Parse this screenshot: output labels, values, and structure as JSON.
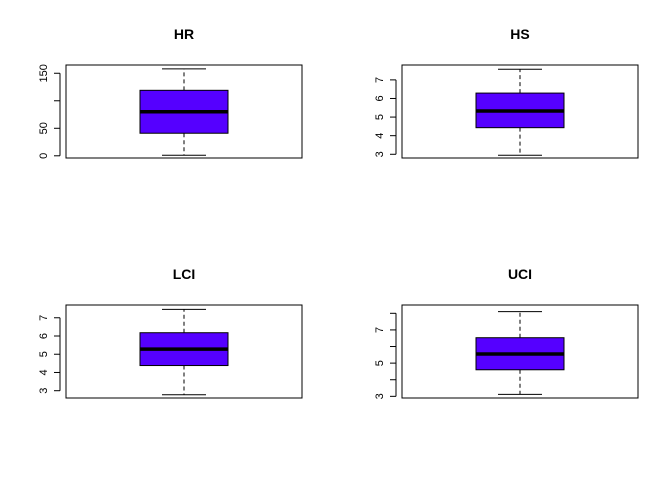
{
  "chart_data": [
    {
      "type": "box",
      "title": "HR",
      "ylim": [
        -4,
        165
      ],
      "ticks": [
        0,
        50,
        100,
        150
      ],
      "tick_labels": [
        "0",
        "50",
        "",
        "150"
      ],
      "stats": {
        "min": 1,
        "q1": 41,
        "median": 80,
        "q3": 119,
        "max": 158
      }
    },
    {
      "type": "box",
      "title": "HS",
      "ylim": [
        2.8,
        7.8
      ],
      "ticks": [
        3,
        4,
        5,
        6,
        7
      ],
      "tick_labels": [
        "3",
        "4",
        "5",
        "6",
        "7"
      ],
      "stats": {
        "min": 2.95,
        "q1": 4.43,
        "median": 5.33,
        "q3": 6.29,
        "max": 7.57
      }
    },
    {
      "type": "box",
      "title": "LCI",
      "ylim": [
        2.6,
        7.7
      ],
      "ticks": [
        3,
        4,
        5,
        6,
        7
      ],
      "tick_labels": [
        "3",
        "4",
        "5",
        "6",
        "7"
      ],
      "stats": {
        "min": 2.78,
        "q1": 4.38,
        "median": 5.28,
        "q3": 6.18,
        "max": 7.46
      }
    },
    {
      "type": "box",
      "title": "UCI",
      "ylim": [
        2.9,
        8.5
      ],
      "ticks": [
        3,
        4,
        5,
        6,
        7,
        8
      ],
      "tick_labels": [
        "3",
        "",
        "5",
        "",
        "7",
        ""
      ],
      "stats": {
        "min": 3.12,
        "q1": 4.6,
        "median": 5.55,
        "q3": 6.53,
        "max": 8.1
      }
    }
  ],
  "colors": {
    "box_fill": "#5500ff",
    "stroke": "#000000"
  }
}
